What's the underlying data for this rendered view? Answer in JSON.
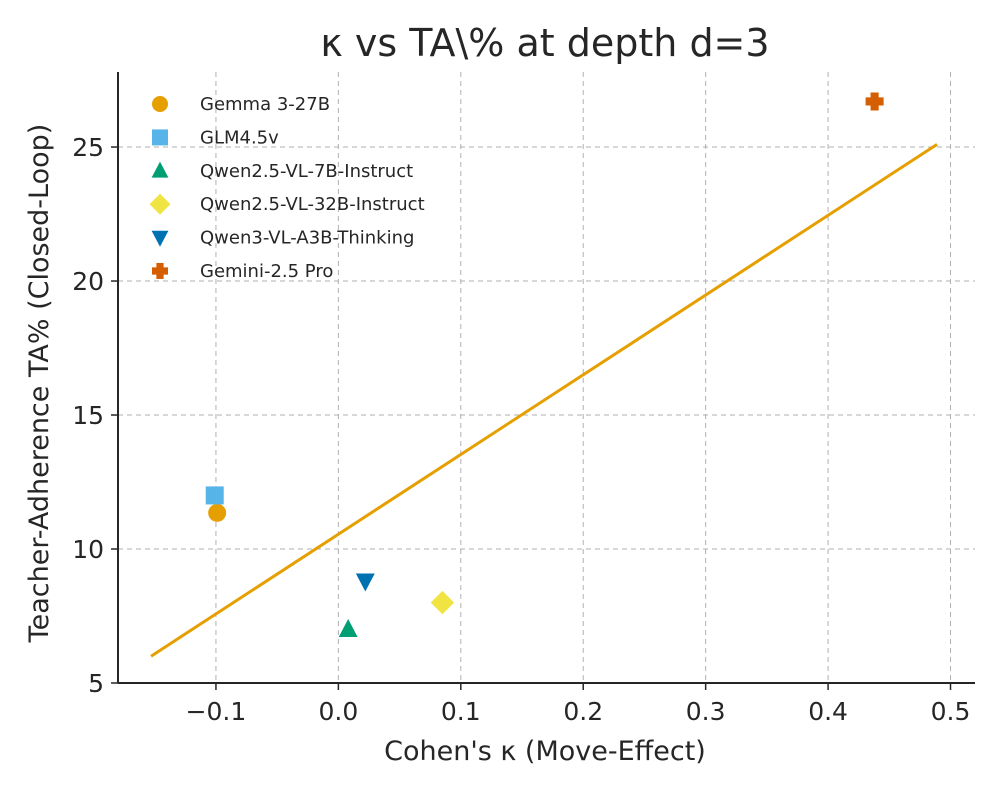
{
  "chart_data": {
    "type": "scatter",
    "title": "κ vs TA\\% at depth d=3",
    "xlabel": "Cohen's κ (Move-Effect)",
    "ylabel": "Teacher-Adherence TA% (Closed-Loop)",
    "xlim": [
      -0.18,
      0.52
    ],
    "ylim": [
      5,
      27.8
    ],
    "xticks": [
      -0.1,
      0.0,
      0.1,
      0.2,
      0.3,
      0.4,
      0.5
    ],
    "xtick_labels": [
      "−0.1",
      "0.0",
      "0.1",
      "0.2",
      "0.3",
      "0.4",
      "0.5"
    ],
    "yticks": [
      5,
      10,
      15,
      20,
      25
    ],
    "ytick_labels": [
      "5",
      "10",
      "15",
      "20",
      "25"
    ],
    "grid": true,
    "legend_position": "top-left",
    "series": [
      {
        "name": "Gemma 3-27B",
        "marker": "circle",
        "color": "#E69F00",
        "points": [
          {
            "x": -0.099,
            "y": 11.35
          }
        ]
      },
      {
        "name": "GLM4.5v",
        "marker": "square",
        "color": "#56B4E9",
        "points": [
          {
            "x": -0.101,
            "y": 12.0
          }
        ]
      },
      {
        "name": "Qwen2.5-VL-7B-Instruct",
        "marker": "triangle-up",
        "color": "#009E73",
        "points": [
          {
            "x": 0.008,
            "y": 7.0
          }
        ]
      },
      {
        "name": "Qwen2.5-VL-32B-Instruct",
        "marker": "diamond",
        "color": "#F0E442",
        "points": [
          {
            "x": 0.085,
            "y": 8.0
          }
        ]
      },
      {
        "name": "Qwen3-VL-A3B-Thinking",
        "marker": "triangle-down",
        "color": "#0072B2",
        "points": [
          {
            "x": 0.022,
            "y": 8.8
          }
        ]
      },
      {
        "name": "Gemini-2.5 Pro",
        "marker": "plus",
        "color": "#D55E00",
        "points": [
          {
            "x": 0.438,
            "y": 26.7
          }
        ]
      }
    ],
    "fit_line": {
      "color": "#E69F00",
      "points": [
        {
          "x": -0.153,
          "y": 6.0
        },
        {
          "x": 0.489,
          "y": 25.1
        }
      ]
    }
  }
}
